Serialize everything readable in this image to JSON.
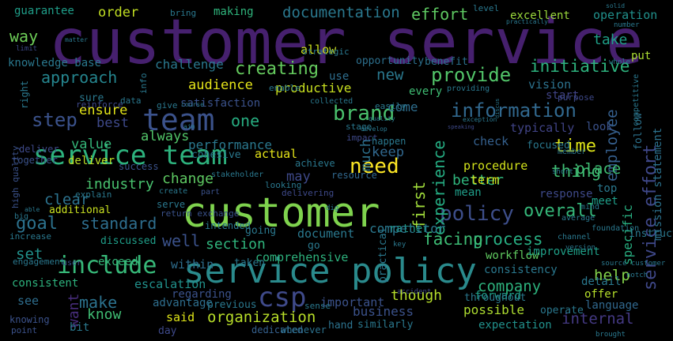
{
  "words": [
    {
      "text": "customer service",
      "color": "#46206e"
    },
    {
      "text": "customer",
      "color": "#7fd34e"
    },
    {
      "text": "service policy",
      "color": "#2a8a8c"
    },
    {
      "text": "service team",
      "color": "#2db27d"
    },
    {
      "text": "team",
      "color": "#3b528b"
    },
    {
      "text": "csp",
      "color": "#3f4a8a"
    },
    {
      "text": "need",
      "color": "#fde725"
    },
    {
      "text": "include",
      "color": "#37b878"
    },
    {
      "text": "information",
      "color": "#31688e"
    },
    {
      "text": "policy",
      "color": "#3d4e8a"
    },
    {
      "text": "brand",
      "color": "#4ac16d"
    },
    {
      "text": "provide",
      "color": "#52c569"
    },
    {
      "text": "documentation",
      "color": "#2a788e"
    },
    {
      "text": "creating",
      "color": "#65cb5e"
    },
    {
      "text": "initiative",
      "color": "#2db27d"
    },
    {
      "text": "approach",
      "color": "#25858e"
    },
    {
      "text": "step",
      "color": "#3b528b"
    },
    {
      "text": "time",
      "color": "#dde318"
    },
    {
      "text": "effort",
      "color": "#5ec962"
    },
    {
      "text": "way",
      "color": "#6ece58"
    },
    {
      "text": "order",
      "color": "#c2df23"
    },
    {
      "text": "making",
      "color": "#2fb47c"
    },
    {
      "text": "guarantee",
      "color": "#1f9e89"
    },
    {
      "text": "operation",
      "color": "#21918c"
    },
    {
      "text": "excellent",
      "color": "#9bd93c"
    },
    {
      "text": "take",
      "color": "#1fa088"
    },
    {
      "text": "put",
      "color": "#aadc32"
    },
    {
      "text": "goal",
      "color": "#2c728e"
    },
    {
      "text": "standard",
      "color": "#2e6e8e"
    },
    {
      "text": "overall",
      "color": "#35b779"
    },
    {
      "text": "process",
      "color": "#27ad81"
    },
    {
      "text": "facing",
      "color": "#3dbc74"
    },
    {
      "text": "thing",
      "color": "#3fbc73"
    },
    {
      "text": "employee",
      "color": "#355f8d"
    },
    {
      "text": "service effort",
      "color": "#3f4889"
    },
    {
      "text": "experience",
      "color": "#25ac82"
    },
    {
      "text": "first",
      "color": "#9fda3a"
    },
    {
      "text": "place",
      "color": "#3fbc73"
    },
    {
      "text": "industry",
      "color": "#48c16e"
    },
    {
      "text": "change",
      "color": "#5ec962"
    },
    {
      "text": "may",
      "color": "#3e4989"
    },
    {
      "text": "well",
      "color": "#3b528b"
    },
    {
      "text": "section",
      "color": "#2fb47c"
    },
    {
      "text": "audience",
      "color": "#e5e419"
    },
    {
      "text": "satisfaction",
      "color": "#3b528b"
    },
    {
      "text": "one",
      "color": "#27ad81"
    },
    {
      "text": "new",
      "color": "#2a788e"
    },
    {
      "text": "every",
      "color": "#3fbc73"
    },
    {
      "text": "keep",
      "color": "#31688e"
    },
    {
      "text": "much",
      "color": "#2c728e"
    },
    {
      "text": "company",
      "color": "#2db27d"
    },
    {
      "text": "help",
      "color": "#84d44b"
    },
    {
      "text": "internal",
      "color": "#443983"
    },
    {
      "text": "business",
      "color": "#3b528b"
    },
    {
      "text": "possible",
      "color": "#addc30"
    },
    {
      "text": "though",
      "color": "#b5de2b"
    },
    {
      "text": "workflow",
      "color": "#60ca60"
    },
    {
      "text": "want",
      "color": "#472d7b"
    },
    {
      "text": "set",
      "color": "#21918c"
    },
    {
      "text": "make",
      "color": "#2c728e"
    },
    {
      "text": "know",
      "color": "#3fbc73"
    },
    {
      "text": "said",
      "color": "#dde318"
    },
    {
      "text": "organization",
      "color": "#b8de29"
    },
    {
      "text": "specific",
      "color": "#28ae80"
    },
    {
      "text": "ensure",
      "color": "#e2e418"
    },
    {
      "text": "best",
      "color": "#3e4989"
    },
    {
      "text": "value",
      "color": "#35b779"
    },
    {
      "text": "always",
      "color": "#52c569"
    },
    {
      "text": "performance",
      "color": "#2a788e"
    },
    {
      "text": "actual",
      "color": "#e5e419"
    },
    {
      "text": "clear",
      "color": "#2c728e"
    },
    {
      "text": "check",
      "color": "#35608d"
    },
    {
      "text": "procedure",
      "color": "#d2e21b"
    },
    {
      "text": "better",
      "color": "#2fb47c"
    },
    {
      "text": "term",
      "color": "#d8e219"
    },
    {
      "text": "come",
      "color": "#2e6e8e"
    },
    {
      "text": "start",
      "color": "#414487"
    },
    {
      "text": "challenge",
      "color": "#2a788e"
    },
    {
      "text": "knowledge base",
      "color": "#2a788e"
    },
    {
      "text": "allow",
      "color": "#cde11d"
    },
    {
      "text": "productive",
      "color": "#c8e020"
    },
    {
      "text": "use",
      "color": "#2e6e8e"
    },
    {
      "text": "opportunity",
      "color": "#2d708e"
    },
    {
      "text": "benefit",
      "color": "#2c728e"
    },
    {
      "text": "vision",
      "color": "#2c728e"
    },
    {
      "text": "typically",
      "color": "#414487"
    },
    {
      "text": "look",
      "color": "#3b528b"
    },
    {
      "text": "focused",
      "color": "#2a788e"
    },
    {
      "text": "mean",
      "color": "#1f9e89"
    },
    {
      "text": "top",
      "color": "#2a788e"
    },
    {
      "text": "meet",
      "color": "#1f9e89"
    },
    {
      "text": "response",
      "color": "#3e4989"
    },
    {
      "text": "instruction",
      "color": "#2a788e"
    },
    {
      "text": "mission statement",
      "color": "#2c728e"
    },
    {
      "text": "follow",
      "color": "#2c728e"
    },
    {
      "text": "improvement",
      "color": "#1fa088"
    },
    {
      "text": "offer",
      "color": "#b5de2b"
    },
    {
      "text": "rather",
      "color": "#1f9e89"
    },
    {
      "text": "language",
      "color": "#31688e"
    },
    {
      "text": "consistency",
      "color": "#2a788e"
    },
    {
      "text": "forward",
      "color": "#1fa088"
    },
    {
      "text": "detail",
      "color": "#2a788e"
    },
    {
      "text": "expectation",
      "color": "#21918c"
    },
    {
      "text": "throughout",
      "color": "#2a788e"
    },
    {
      "text": "operate",
      "color": "#2a788e"
    },
    {
      "text": "competitor",
      "color": "#2a788e"
    },
    {
      "text": "document",
      "color": "#2a788e"
    },
    {
      "text": "go",
      "color": "#2a788e"
    },
    {
      "text": "comprehensive",
      "color": "#2db27d"
    },
    {
      "text": "within",
      "color": "#2e6e8e"
    },
    {
      "text": "taken",
      "color": "#2a788e"
    },
    {
      "text": "regarding",
      "color": "#3b528b"
    },
    {
      "text": "escalation",
      "color": "#21918c"
    },
    {
      "text": "advantage",
      "color": "#2e6e8e"
    },
    {
      "text": "day",
      "color": "#3e4989"
    },
    {
      "text": "dedicated",
      "color": "#35608d"
    },
    {
      "text": "important",
      "color": "#3b528b"
    },
    {
      "text": "hand",
      "color": "#2c728e"
    },
    {
      "text": "similarly",
      "color": "#2a788e"
    },
    {
      "text": "practical",
      "color": "#2a788e"
    },
    {
      "text": "consistent",
      "color": "#2db27d"
    },
    {
      "text": "see",
      "color": "#2e6e8e"
    },
    {
      "text": "bit",
      "color": "#2a788e"
    },
    {
      "text": "knowing",
      "color": "#3b528b"
    },
    {
      "text": "point",
      "color": "#3b528b"
    },
    {
      "text": "whenever",
      "color": "#2c728e"
    },
    {
      "text": "previous",
      "color": "#2a788e"
    },
    {
      "text": "sense",
      "color": "#2a788e"
    },
    {
      "text": "discussed",
      "color": "#1f9e89"
    },
    {
      "text": "exceed",
      "color": "#35b779"
    },
    {
      "text": "engagement",
      "color": "#2a788e"
    },
    {
      "text": "additional",
      "color": "#c8e020"
    },
    {
      "text": "serve",
      "color": "#2a788e"
    },
    {
      "text": "explain",
      "color": "#2a788e"
    },
    {
      "text": "return exchange",
      "color": "#3b528b"
    },
    {
      "text": "deliver",
      "color": "#bddf26"
    },
    {
      "text": "deliver",
      "color": "#3e4989"
    },
    {
      "text": "together",
      "color": "#3b528b"
    },
    {
      "text": "success",
      "color": "#3b528b"
    },
    {
      "text": "cohesive",
      "color": "#2a788e"
    },
    {
      "text": "delivering",
      "color": "#3e4989"
    },
    {
      "text": "resource",
      "color": "#31688e"
    },
    {
      "text": "looking",
      "color": "#2a788e"
    },
    {
      "text": "achieve",
      "color": "#2a788e"
    },
    {
      "text": "stakeholder",
      "color": "#2a788e"
    },
    {
      "text": "create",
      "color": "#2a788e"
    },
    {
      "text": "part",
      "color": "#3b528b"
    },
    {
      "text": "intended",
      "color": "#2a788e"
    },
    {
      "text": "going",
      "color": "#2a788e"
    },
    {
      "text": "user",
      "color": "#3b528b"
    },
    {
      "text": "increase",
      "color": "#2a788e"
    },
    {
      "text": "sure",
      "color": "#2a788e"
    },
    {
      "text": "data",
      "color": "#2a788e"
    },
    {
      "text": "give",
      "color": "#2a788e"
    },
    {
      "text": "info",
      "color": "#2a788e"
    },
    {
      "text": "reinforce",
      "color": "#3e4989"
    },
    {
      "text": "right",
      "color": "#2a788e"
    },
    {
      "text": "high quality",
      "color": "#3b528b"
    },
    {
      "text": "big",
      "color": "#2a788e"
    },
    {
      "text": "bring",
      "color": "#2a788e"
    },
    {
      "text": "level",
      "color": "#2a788e"
    },
    {
      "text": "strategic",
      "color": "#2a788e"
    },
    {
      "text": "enable",
      "color": "#2a788e"
    },
    {
      "text": "collected",
      "color": "#2a788e"
    },
    {
      "text": "providing",
      "color": "#2a788e"
    },
    {
      "text": "purpose",
      "color": "#3e4989"
    },
    {
      "text": "competitive",
      "color": "#2a788e"
    },
    {
      "text": "easily",
      "color": "#2a788e"
    },
    {
      "text": "stage",
      "color": "#2a788e"
    },
    {
      "text": "impact",
      "color": "#3e4989"
    },
    {
      "text": "happen",
      "color": "#2a788e"
    },
    {
      "text": "member",
      "color": "#2a788e"
    },
    {
      "text": "short",
      "color": "#2a788e"
    },
    {
      "text": "mind",
      "color": "#2a788e"
    },
    {
      "text": "average",
      "color": "#2a788e"
    },
    {
      "text": "channel",
      "color": "#2a788e"
    },
    {
      "text": "version",
      "color": "#2a788e"
    },
    {
      "text": "foundation",
      "color": "#2a788e"
    },
    {
      "text": "source customer",
      "color": "#2a788e"
    },
    {
      "text": "notch",
      "color": "#2a788e"
    },
    {
      "text": "brought",
      "color": "#2a788e"
    },
    {
      "text": "key",
      "color": "#2a788e"
    },
    {
      "text": "accident",
      "color": "#3e4989"
    },
    {
      "text": "dig",
      "color": "#2a788e"
    },
    {
      "text": "able",
      "color": "#2a788e"
    },
    {
      "text": "limit",
      "color": "#3e4989"
    },
    {
      "text": "matter",
      "color": "#2a788e"
    },
    {
      "text": "whole",
      "color": "#2a788e"
    },
    {
      "text": "number",
      "color": "#2a788e"
    },
    {
      "text": "solid",
      "color": "#2a788e"
    },
    {
      "text": "practically",
      "color": "#2a788e"
    },
    {
      "text": "course",
      "color": "#2a788e"
    },
    {
      "text": "aim",
      "color": "#2a788e"
    },
    {
      "text": "exception",
      "color": "#2a788e"
    },
    {
      "text": "speaking",
      "color": "#3e4989"
    },
    {
      "text": "discus",
      "color": "#2a788e"
    },
    {
      "text": "develop",
      "color": "#2a788e"
    },
    {
      "text": "quality",
      "color": "#2a788e"
    }
  ]
}
